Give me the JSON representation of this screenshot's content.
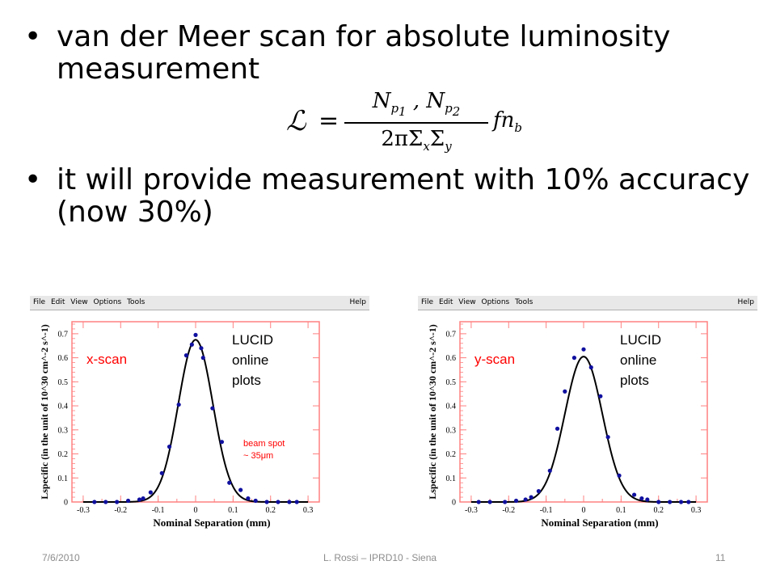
{
  "slide": {
    "bullets": [
      "van der Meer scan for absolute luminosity measurement",
      "it will provide measurement with 10% accuracy (now 30%)"
    ],
    "bullet_glyph": "•",
    "formula": {
      "lhs": "ℒ",
      "eq": "=",
      "numerator": "Np1 , Np2",
      "denominator": "2πΣxΣy",
      "tail": "fnb"
    },
    "footer": {
      "date": "7/6/2010",
      "center": "L. Rossi  – IPRD10 - Siena",
      "page": "11"
    }
  },
  "window_menu": {
    "items": [
      "File",
      "Edit",
      "View",
      "Options",
      "Tools"
    ],
    "help": "Help"
  },
  "colors": {
    "frame": "#ff8080",
    "points": "#1010a0",
    "fit": "#000000",
    "annotation": "#ff0000"
  },
  "chart_data": [
    {
      "type": "scatter",
      "tag": "x-scan",
      "annotation": "LUCID online plots",
      "note": "beam spot ~ 35μm",
      "xlabel": "Nominal Separation (mm)",
      "ylabel": "Lspecific (in the unit of 10^30 cm^-2 s^-1)",
      "xlim": [
        -0.33,
        0.33
      ],
      "ylim": [
        0,
        0.75
      ],
      "xticks": [
        "-0.3",
        "-0.2",
        "-0.1",
        "0",
        "0.1",
        "0.2",
        "0.3"
      ],
      "yticks": [
        "0",
        "0.1",
        "0.2",
        "0.3",
        "0.4",
        "0.5",
        "0.6",
        "0.7"
      ],
      "grid": false,
      "points": [
        {
          "x": -0.27,
          "y": 0.0
        },
        {
          "x": -0.24,
          "y": 0.0
        },
        {
          "x": -0.21,
          "y": 0.0
        },
        {
          "x": -0.18,
          "y": 0.005
        },
        {
          "x": -0.15,
          "y": 0.01
        },
        {
          "x": -0.14,
          "y": 0.015
        },
        {
          "x": -0.12,
          "y": 0.04
        },
        {
          "x": -0.09,
          "y": 0.12
        },
        {
          "x": -0.07,
          "y": 0.23
        },
        {
          "x": -0.045,
          "y": 0.405
        },
        {
          "x": -0.025,
          "y": 0.61
        },
        {
          "x": -0.01,
          "y": 0.655
        },
        {
          "x": 0.0,
          "y": 0.695
        },
        {
          "x": 0.015,
          "y": 0.64
        },
        {
          "x": 0.02,
          "y": 0.6
        },
        {
          "x": 0.045,
          "y": 0.39
        },
        {
          "x": 0.07,
          "y": 0.25
        },
        {
          "x": 0.09,
          "y": 0.08
        },
        {
          "x": 0.12,
          "y": 0.05
        },
        {
          "x": 0.14,
          "y": 0.015
        },
        {
          "x": 0.16,
          "y": 0.005
        },
        {
          "x": 0.19,
          "y": 0.0
        },
        {
          "x": 0.22,
          "y": 0.0
        },
        {
          "x": 0.25,
          "y": 0.0
        },
        {
          "x": 0.27,
          "y": 0.0
        }
      ],
      "fit": {
        "shape": "gaussian",
        "amplitude": 0.675,
        "mean": 0.0,
        "sigma": 0.046
      }
    },
    {
      "type": "scatter",
      "tag": "y-scan",
      "annotation": "LUCID online plots",
      "note": "",
      "xlabel": "Nominal Separation (mm)",
      "ylabel": "Lspecific (in the unit of 10^30 cm^-2 s^-1)",
      "xlim": [
        -0.33,
        0.33
      ],
      "ylim": [
        0,
        0.75
      ],
      "xticks": [
        "-0.3",
        "-0.2",
        "-0.1",
        "0",
        "0.1",
        "0.2",
        "0.3"
      ],
      "yticks": [
        "0",
        "0.1",
        "0.2",
        "0.3",
        "0.4",
        "0.5",
        "0.6",
        "0.7"
      ],
      "grid": false,
      "points": [
        {
          "x": -0.28,
          "y": 0.0
        },
        {
          "x": -0.25,
          "y": 0.0
        },
        {
          "x": -0.21,
          "y": 0.0
        },
        {
          "x": -0.18,
          "y": 0.005
        },
        {
          "x": -0.155,
          "y": 0.01
        },
        {
          "x": -0.14,
          "y": 0.02
        },
        {
          "x": -0.12,
          "y": 0.045
        },
        {
          "x": -0.09,
          "y": 0.13
        },
        {
          "x": -0.07,
          "y": 0.305
        },
        {
          "x": -0.05,
          "y": 0.46
        },
        {
          "x": -0.025,
          "y": 0.6
        },
        {
          "x": 0.0,
          "y": 0.635
        },
        {
          "x": 0.02,
          "y": 0.56
        },
        {
          "x": 0.045,
          "y": 0.44
        },
        {
          "x": 0.065,
          "y": 0.27
        },
        {
          "x": 0.095,
          "y": 0.11
        },
        {
          "x": 0.135,
          "y": 0.03
        },
        {
          "x": 0.155,
          "y": 0.015
        },
        {
          "x": 0.17,
          "y": 0.01
        },
        {
          "x": 0.2,
          "y": 0.0
        },
        {
          "x": 0.23,
          "y": 0.0
        },
        {
          "x": 0.26,
          "y": 0.0
        },
        {
          "x": 0.28,
          "y": 0.0
        }
      ],
      "fit": {
        "shape": "gaussian",
        "amplitude": 0.605,
        "mean": 0.0,
        "sigma": 0.05
      }
    }
  ]
}
